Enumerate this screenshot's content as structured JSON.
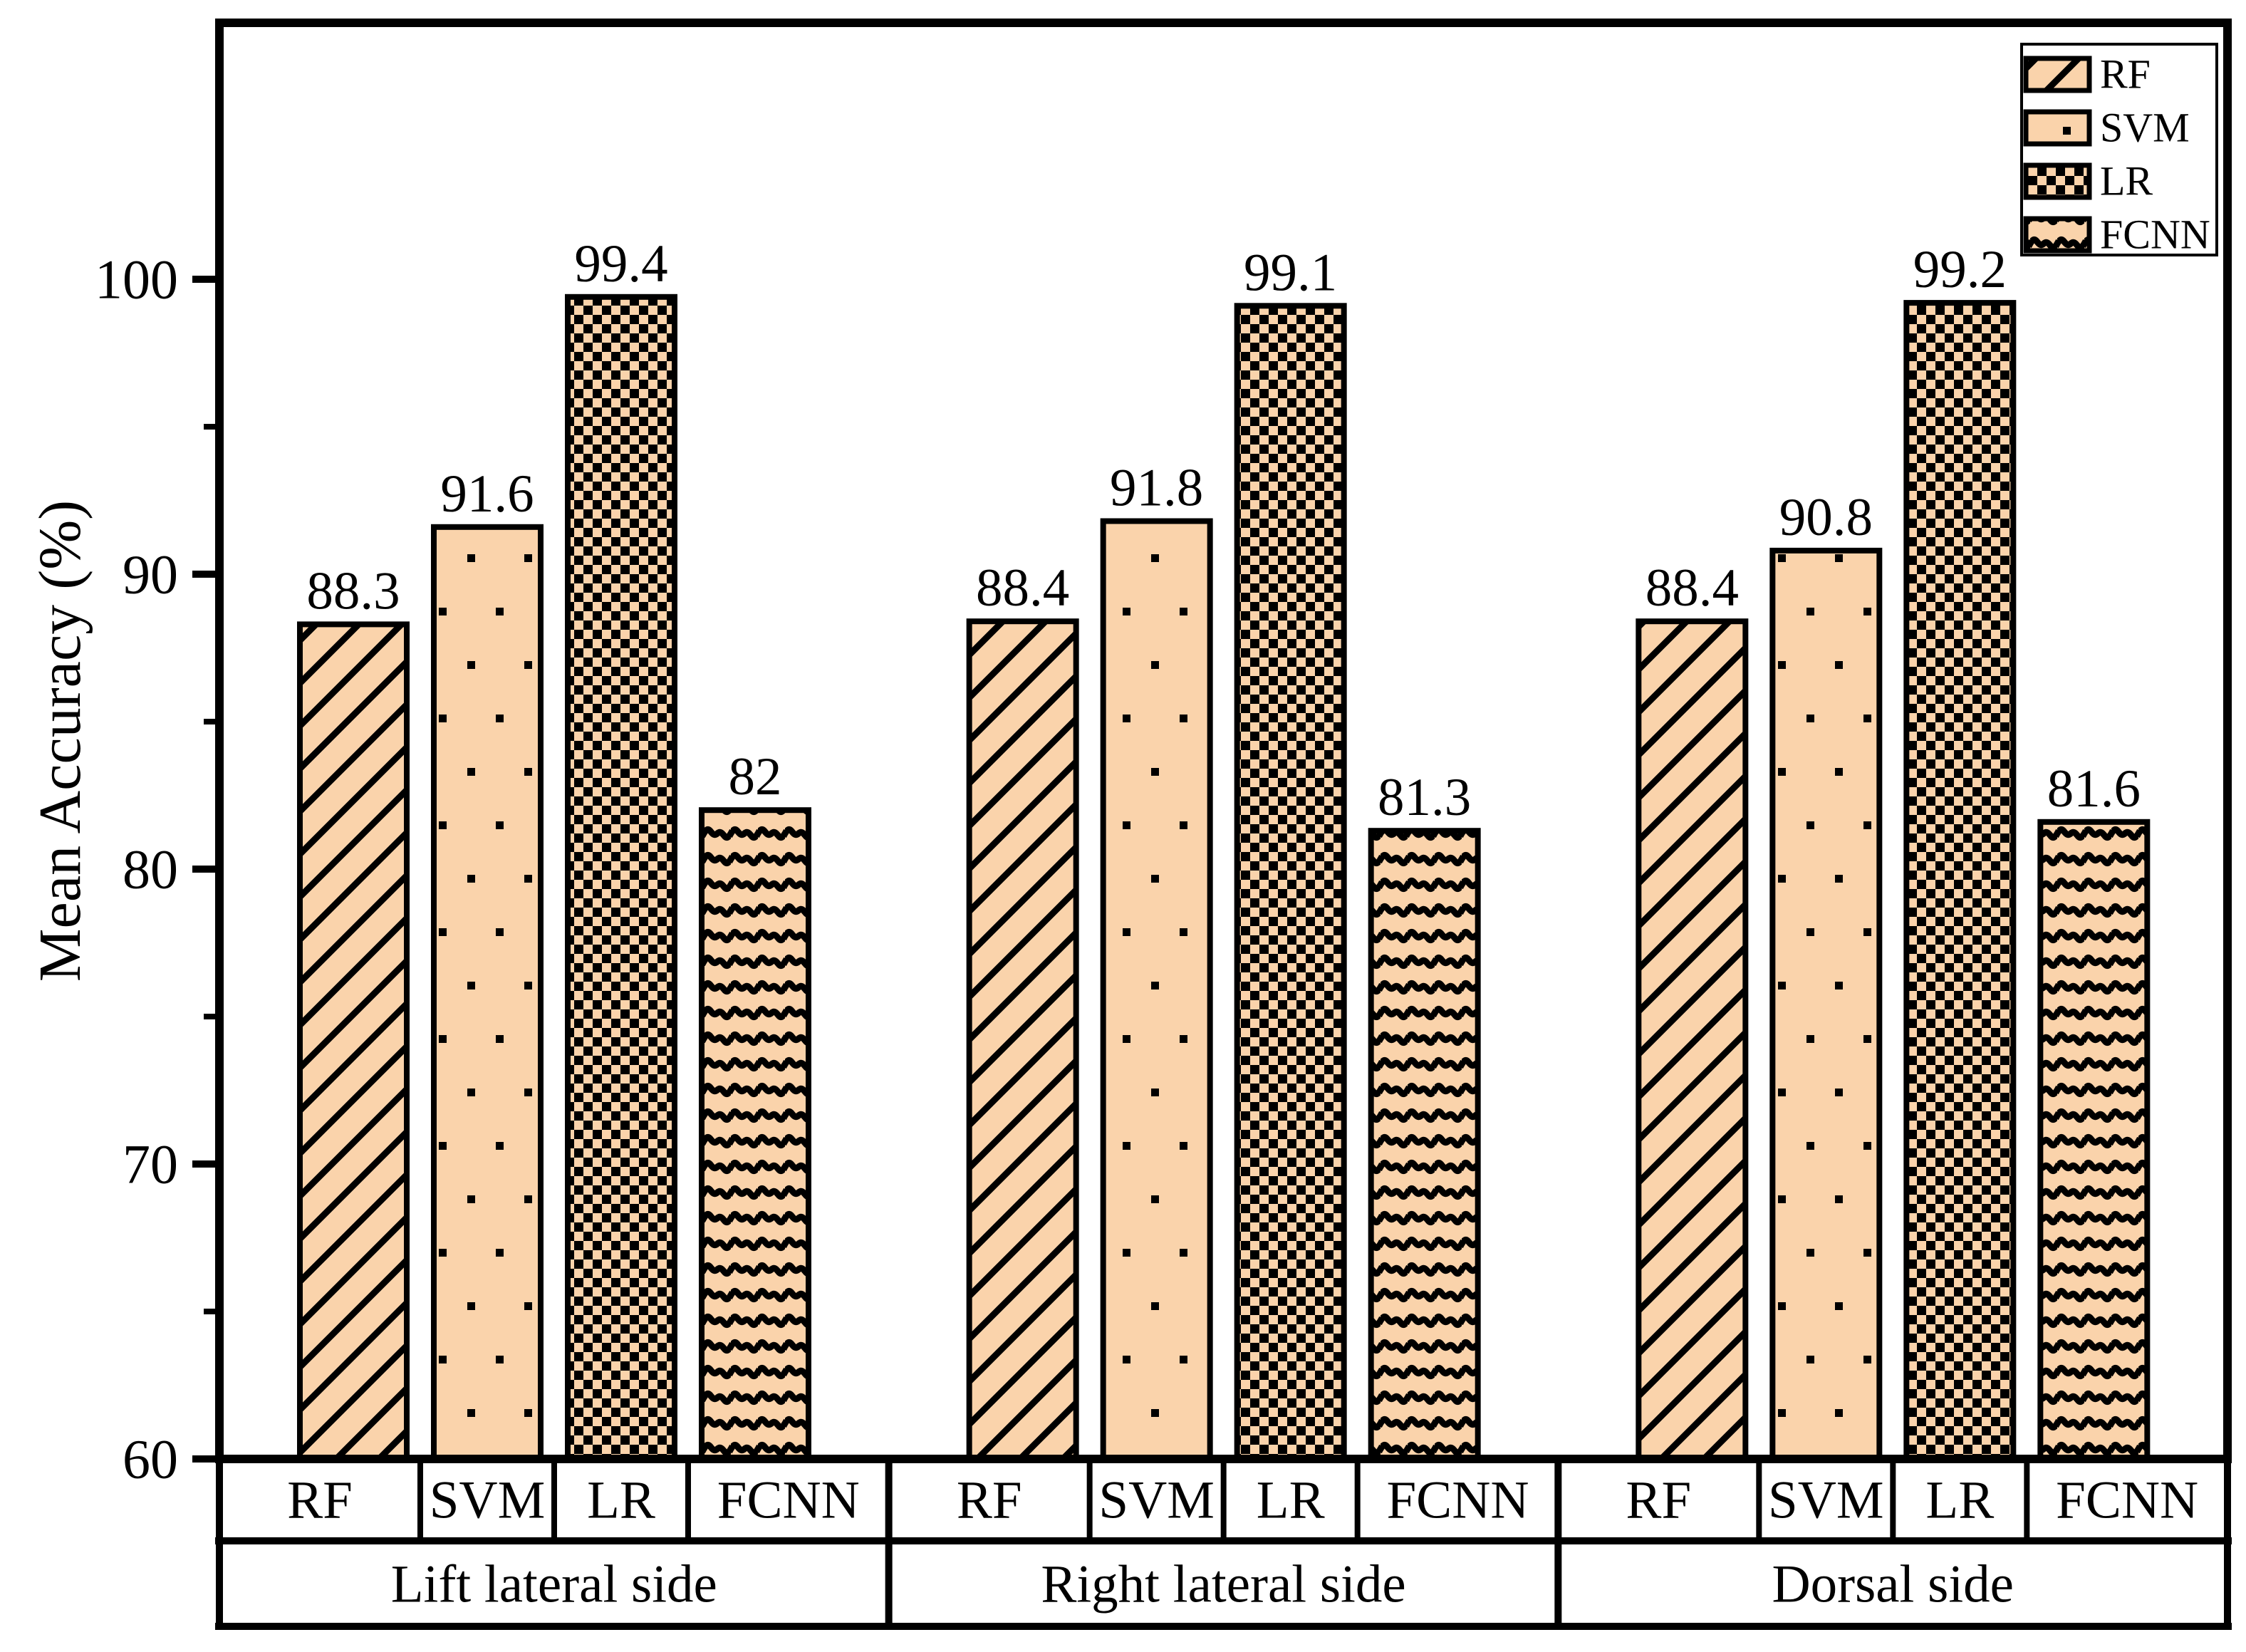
{
  "figure": {
    "background": "#FFFFFF",
    "line_color": "#000000",
    "bar_fill": "#FAD3AB"
  },
  "chart_data": {
    "type": "bar",
    "title": "",
    "xlabel": "",
    "ylabel": "Mean Accuracy (%)",
    "ylim": [
      60,
      108.7
    ],
    "yticks": [
      60,
      70,
      80,
      90,
      100
    ],
    "yticks_minor": [
      65,
      75,
      85,
      95
    ],
    "grid": false,
    "legend_position": "top-right",
    "groups": [
      "Lift lateral side",
      "Right lateral side",
      "Dorsal side"
    ],
    "series": [
      {
        "name": "RF",
        "pattern": "diagonal-hatch",
        "values": [
          88.3,
          88.4,
          88.4
        ]
      },
      {
        "name": "SVM",
        "pattern": "dots",
        "values": [
          91.6,
          91.8,
          90.8
        ]
      },
      {
        "name": "LR",
        "pattern": "checkerboard",
        "values": [
          99.4,
          99.1,
          99.2
        ]
      },
      {
        "name": "FCNN",
        "pattern": "waves",
        "values": [
          82,
          81.3,
          81.6
        ]
      }
    ],
    "bar_labels": [
      [
        "88.3",
        "91.6",
        "99.4",
        "82"
      ],
      [
        "88.4",
        "91.8",
        "99.1",
        "81.3"
      ],
      [
        "88.4",
        "90.8",
        "99.2",
        "81.6"
      ]
    ],
    "legend": [
      "RF",
      "SVM",
      "LR",
      "FCNN"
    ]
  }
}
